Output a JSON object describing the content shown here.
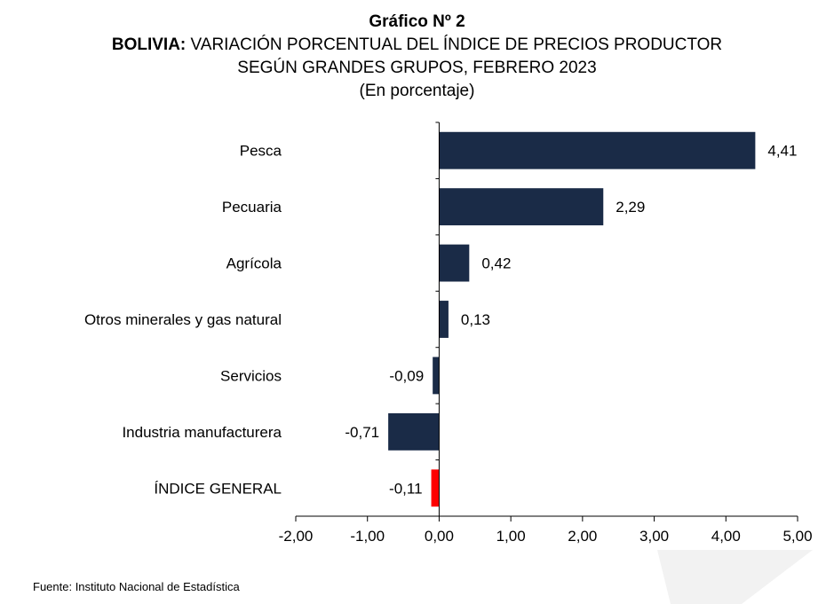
{
  "title": {
    "line1": "Gráfico Nº 2",
    "line2_bold": "BOLIVIA:",
    "line2_rest": " VARIACIÓN PORCENTUAL DEL ÍNDICE DE PRECIOS PRODUCTOR",
    "line3": "SEGÚN GRANDES GRUPOS, FEBRERO 2023",
    "line4": "(En porcentaje)"
  },
  "source": "Fuente: Instituto Nacional de Estadística",
  "colors": {
    "bar": "#1a2b47",
    "highlight": "#ff0000",
    "axis": "#000000"
  },
  "chart_data": {
    "type": "bar",
    "orientation": "horizontal",
    "categories": [
      "Pesca",
      "Pecuaria",
      "Agrícola",
      "Otros minerales y gas natural",
      "Servicios",
      "Industria manufacturera",
      "ÍNDICE GENERAL"
    ],
    "values": [
      4.41,
      2.29,
      0.42,
      0.13,
      -0.09,
      -0.71,
      -0.11
    ],
    "data_labels": [
      "4,41",
      "2,29",
      "0,42",
      "0,13",
      "-0,09",
      "-0,71",
      "-0,11"
    ],
    "highlight_category": "ÍNDICE GENERAL",
    "xlim": [
      -2,
      5
    ],
    "xticks": [
      -2,
      -1,
      0,
      1,
      2,
      3,
      4,
      5
    ],
    "xtick_labels": [
      "-2,00",
      "-1,00",
      "0,00",
      "1,00",
      "2,00",
      "3,00",
      "4,00",
      "5,00"
    ],
    "grid": false,
    "legend": "none"
  }
}
